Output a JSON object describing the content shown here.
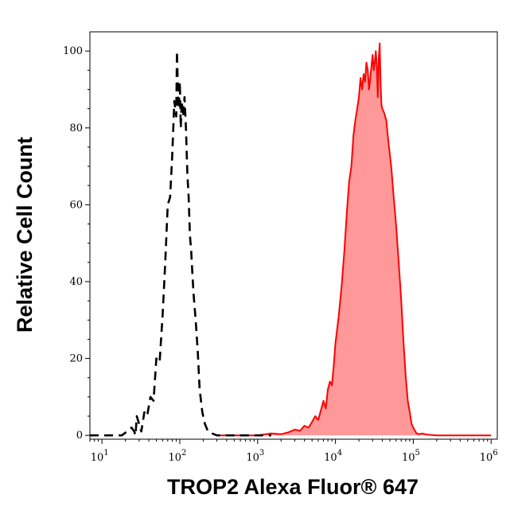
{
  "chart_data": {
    "type": "area",
    "title": "",
    "xlabel": "TROP2 Alexa Fluor® 647",
    "ylabel": "Relative Cell Count",
    "xscale": "log",
    "xlim": [
      7,
      1200000
    ],
    "ylim": [
      -1,
      105
    ],
    "grid": false,
    "x_ticks": [
      {
        "base": "10",
        "exp": "1",
        "value": 10
      },
      {
        "base": "10",
        "exp": "2",
        "value": 100
      },
      {
        "base": "10",
        "exp": "3",
        "value": 1000
      },
      {
        "base": "10",
        "exp": "4",
        "value": 10000
      },
      {
        "base": "10",
        "exp": "5",
        "value": 100000
      },
      {
        "base": "10",
        "exp": "6",
        "value": 1000000
      }
    ],
    "y_ticks": [
      "0",
      "20",
      "40",
      "60",
      "80",
      "100"
    ],
    "series": [
      {
        "style": "dashed-line",
        "color": "#000000",
        "x": [
          7,
          12,
          15,
          18,
          21,
          24,
          26,
          27,
          28,
          30,
          32,
          35,
          38,
          42,
          46,
          50,
          55,
          60,
          65,
          70,
          75,
          80,
          85,
          90,
          92,
          95,
          97,
          100,
          103,
          106,
          110,
          115,
          120,
          125,
          130,
          135,
          140,
          145,
          150,
          160,
          170,
          180,
          195,
          210,
          230,
          260,
          300,
          350,
          420,
          550,
          800,
          1500
        ],
        "y": [
          0,
          0,
          0,
          0,
          1,
          2,
          1,
          0,
          5,
          3,
          1,
          6,
          5,
          10,
          9,
          20,
          19,
          31,
          45,
          60,
          62,
          73,
          87,
          83,
          100,
          88,
          85,
          92,
          80,
          87,
          83,
          88,
          80,
          68,
          62,
          52,
          48,
          42,
          37,
          30,
          22,
          12,
          6,
          3,
          1,
          0.5,
          0,
          0,
          0,
          0,
          0,
          0
        ]
      },
      {
        "style": "filled-area",
        "color": "#ff0000",
        "fill": "#ff9999",
        "x": [
          300,
          1000,
          1500,
          2000,
          2500,
          3000,
          3500,
          4000,
          4500,
          5000,
          5500,
          6000,
          6500,
          7000,
          7500,
          8000,
          8500,
          9000,
          9500,
          10000,
          11000,
          12000,
          13000,
          14000,
          15000,
          16000,
          17000,
          18000,
          19000,
          20000,
          21000,
          22000,
          23000,
          24000,
          25000,
          26000,
          27000,
          28000,
          29000,
          30000,
          31000,
          32000,
          33000,
          34000,
          35000,
          36000,
          37000,
          38000,
          39000,
          40000,
          42000,
          45000,
          48000,
          52000,
          56000,
          60000,
          65000,
          70000,
          75000,
          80000,
          85000,
          90000,
          95000,
          100000,
          110000,
          120000,
          130000,
          150000,
          200000,
          300000,
          600000,
          1000000
        ],
        "y": [
          0,
          0,
          0.5,
          0.3,
          0.8,
          1.5,
          1.2,
          2.5,
          2,
          3.5,
          5,
          4,
          6.5,
          9,
          7,
          12,
          14,
          13,
          18,
          24,
          31,
          39,
          48,
          58,
          66,
          70,
          78,
          82,
          85,
          88,
          93,
          90,
          94,
          92,
          97,
          95,
          90,
          93,
          96,
          99,
          95,
          97,
          100,
          96,
          88,
          98,
          102,
          92,
          86,
          85,
          84,
          82,
          76,
          70,
          62,
          55,
          45,
          35,
          24,
          15,
          9,
          6,
          3,
          2,
          0.5,
          0.3,
          0.5,
          0.2,
          0,
          0,
          0,
          0
        ]
      }
    ]
  }
}
